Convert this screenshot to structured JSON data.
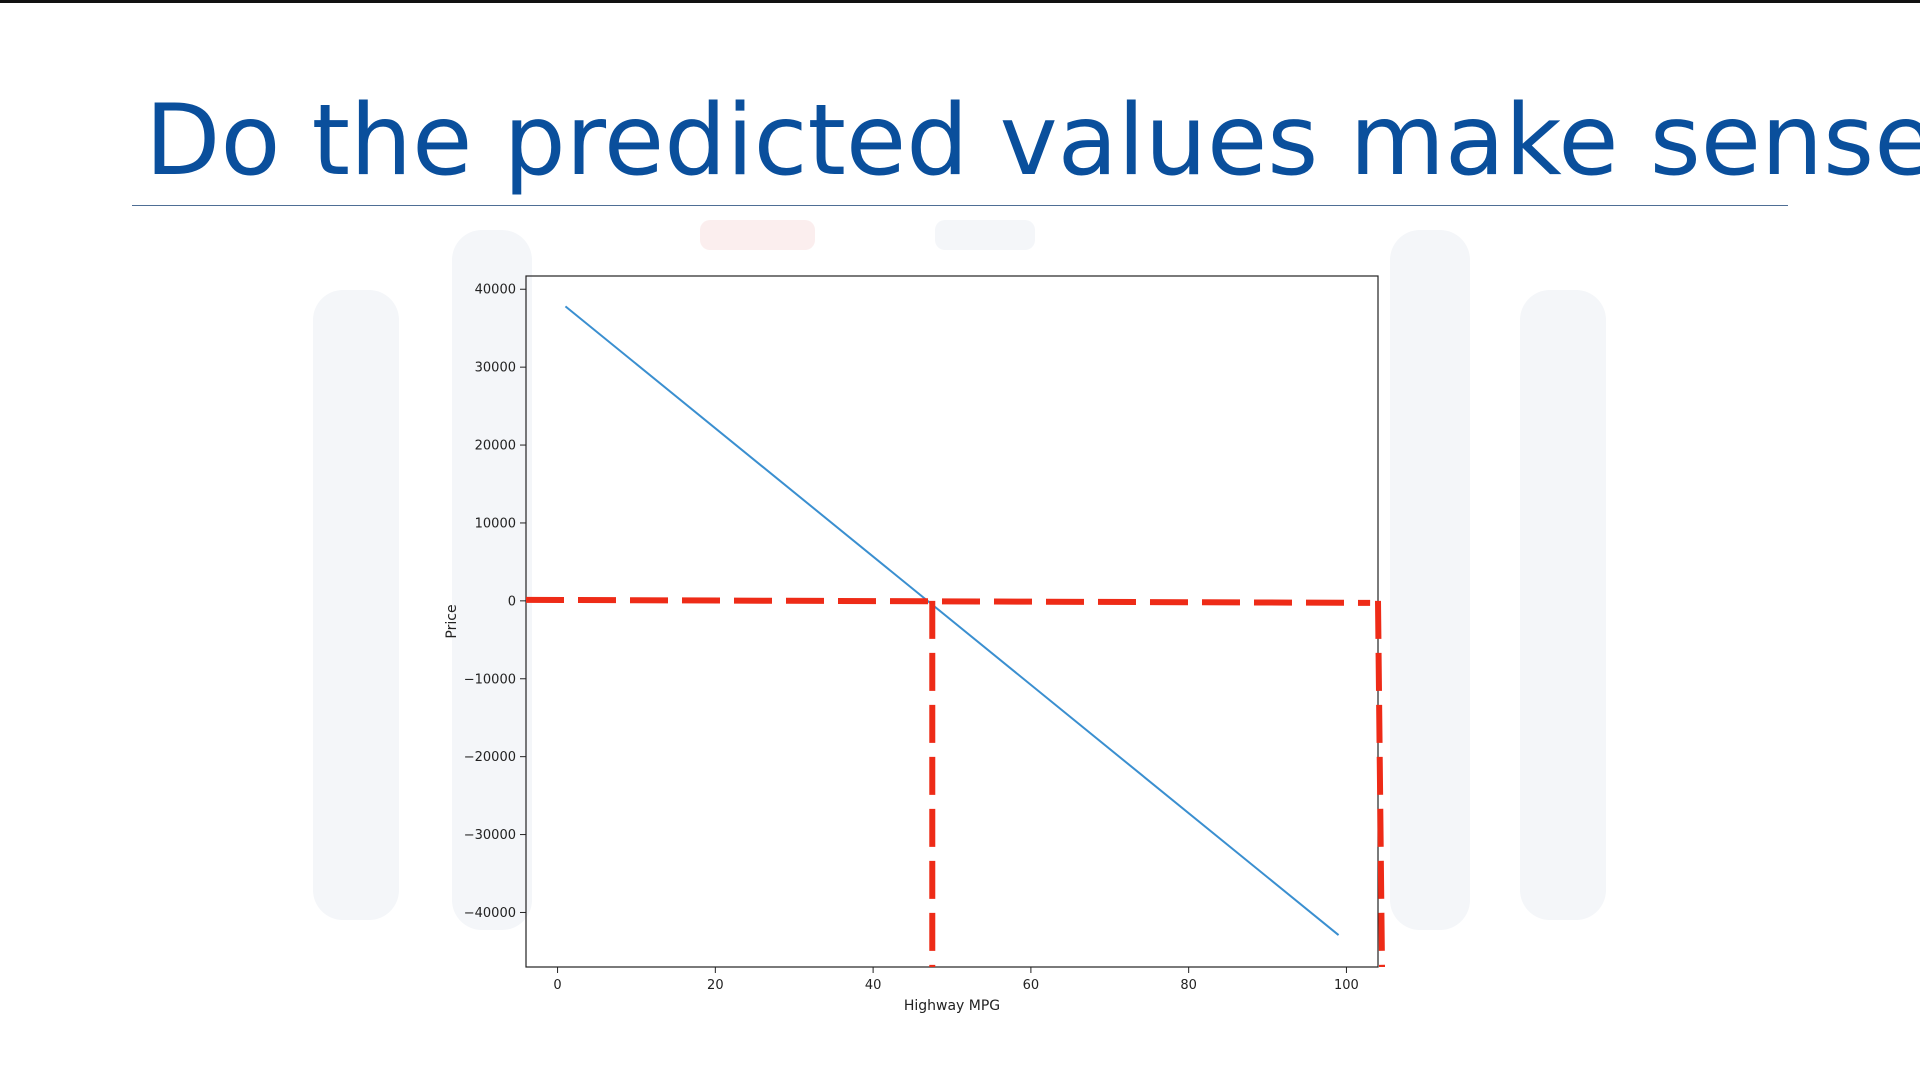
{
  "slide": {
    "title": "Do the predicted values make sense"
  },
  "colors": {
    "title": "#0a4f9c",
    "line": "#3a8fd0",
    "dashed_overlay": "#ee2b17",
    "watermark": "#f4f6f9"
  },
  "chart_data": {
    "type": "line",
    "xlabel": "Highway MPG",
    "ylabel": "Price",
    "xlim": [
      -4,
      104
    ],
    "ylim": [
      -47000,
      41700
    ],
    "xticks": [
      0,
      20,
      40,
      60,
      80,
      100
    ],
    "yticks": [
      40000,
      30000,
      20000,
      10000,
      0,
      -10000,
      -20000,
      -30000,
      -40000
    ],
    "grid": false,
    "series": [
      {
        "x": [
          1,
          99
        ],
        "values": [
          37800,
          -42900
        ]
      }
    ],
    "annotations": [
      {
        "kind": "dashed-horizontal",
        "y": 0,
        "x_from": -4,
        "x_to": 103
      },
      {
        "kind": "dashed-vertical",
        "x": 47.5,
        "y_from": 0,
        "y_to": -47000
      },
      {
        "kind": "dashed-vertical",
        "x": 104,
        "y_from": 0,
        "y_to": -47000
      }
    ]
  }
}
